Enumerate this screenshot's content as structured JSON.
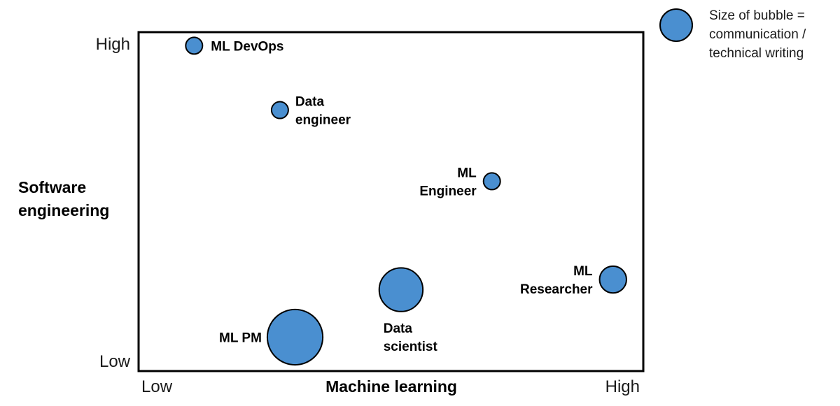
{
  "chart_data": {
    "type": "scatter",
    "variant": "bubble",
    "xlabel": "Machine learning",
    "ylabel_lines": [
      "Software",
      "engineering"
    ],
    "x_ticks": {
      "low": "Low",
      "high": "High"
    },
    "y_ticks": {
      "low": "Low",
      "high": "High"
    },
    "xlim": [
      0,
      1
    ],
    "ylim": [
      0,
      1
    ],
    "bubble_color": "#4a8fd0",
    "points": [
      {
        "name": "ml-devops",
        "label_lines": [
          "ML DevOps"
        ],
        "x": 0.11,
        "y": 0.96,
        "size": 1.0
      },
      {
        "name": "data-engineer",
        "label_lines": [
          "Data",
          "engineer"
        ],
        "x": 0.28,
        "y": 0.77,
        "size": 1.0
      },
      {
        "name": "ml-engineer",
        "label_lines": [
          "ML",
          "Engineer"
        ],
        "x": 0.7,
        "y": 0.56,
        "size": 1.0
      },
      {
        "name": "ml-researcher",
        "label_lines": [
          "ML",
          "Researcher"
        ],
        "x": 0.94,
        "y": 0.27,
        "size": 1.6
      },
      {
        "name": "data-scientist",
        "label_lines": [
          "Data",
          "scientist"
        ],
        "x": 0.52,
        "y": 0.24,
        "size": 2.6
      },
      {
        "name": "ml-pm",
        "label_lines": [
          "ML PM"
        ],
        "x": 0.31,
        "y": 0.1,
        "size": 3.3
      }
    ],
    "legend": {
      "text_lines": [
        "Size of bubble =",
        "communication /",
        "technical writing"
      ]
    }
  }
}
